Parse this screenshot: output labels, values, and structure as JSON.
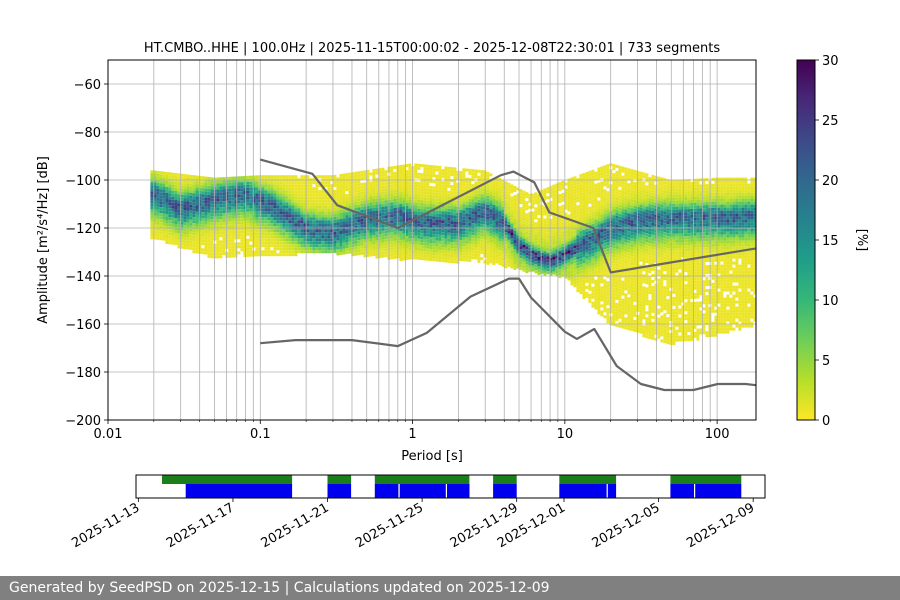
{
  "footer": {
    "generated_label": "Generated by SeedPSD on",
    "generated_date": "2025-12-15",
    "separator": "|",
    "updated_label": "Calculations updated on",
    "updated_date": "2025-12-09"
  },
  "colors": {
    "noise_model": "#666666",
    "grid": "#b0b0b0",
    "coverage_green": "#1a7f1a",
    "coverage_blue": "#0000ee",
    "colormap": [
      "#fde725",
      "#b5de2b",
      "#6ece58",
      "#35b779",
      "#1f9e89",
      "#26828e",
      "#31688e",
      "#3e4989",
      "#482878",
      "#440154"
    ]
  },
  "chart_data": [
    {
      "type": "heatmap",
      "title": "HT.CMBO..HHE | 100.0Hz | 2025-11-15T00:00:02 - 2025-12-08T22:30:01 | 733 segments",
      "xlabel": "Period [s]",
      "ylabel": "Amplitude [m²/s⁴/Hz] [dB]",
      "xscale": "log",
      "xlim": [
        0.01,
        180
      ],
      "ylim": [
        -200,
        -50
      ],
      "xticks": [
        0.01,
        0.1,
        1,
        10,
        100
      ],
      "xtick_labels": [
        "0.01",
        "0.1",
        "1",
        "10",
        "100"
      ],
      "yticks": [
        -200,
        -180,
        -160,
        -140,
        -120,
        -100,
        -80,
        -60
      ],
      "ytick_labels": [
        "−200",
        "−180",
        "−160",
        "−140",
        "−120",
        "−100",
        "−80",
        "−60"
      ],
      "grid": true,
      "colorbar": {
        "label": "[%]",
        "range": [
          0,
          30
        ],
        "ticks": [
          0,
          5,
          10,
          15,
          20,
          25,
          30
        ],
        "tick_labels": [
          "0",
          "5",
          "10",
          "15",
          "20",
          "25",
          "30"
        ]
      },
      "psd_mode_curve": {
        "period": [
          0.02,
          0.03,
          0.05,
          0.08,
          0.12,
          0.2,
          0.3,
          0.5,
          0.8,
          1.2,
          2,
          3,
          4,
          5,
          6,
          7,
          8,
          10,
          13,
          16,
          20,
          30,
          50,
          80,
          120,
          180
        ],
        "db": [
          -105,
          -111,
          -107,
          -105,
          -110,
          -119,
          -121,
          -115,
          -114,
          -117,
          -117,
          -112,
          -117,
          -126,
          -130,
          -132,
          -133,
          -130,
          -126,
          -123,
          -119,
          -116,
          -115,
          -115,
          -115,
          -114
        ]
      },
      "psd_spread": {
        "period": [
          0.02,
          0.05,
          0.1,
          0.3,
          1,
          3,
          6,
          10,
          20,
          50,
          100,
          180
        ],
        "upper_db": [
          -96,
          -99,
          -98,
          -98,
          -93,
          -96,
          -106,
          -100,
          -93,
          -100,
          -99,
          -99
        ],
        "lower_db": [
          -124,
          -132,
          -131,
          -130,
          -133,
          -134,
          -138,
          -140,
          -160,
          -168,
          -164,
          -160
        ]
      },
      "series": [
        {
          "name": "High Noise Model",
          "period": [
            0.1,
            0.22,
            0.32,
            0.8,
            3.8,
            4.6,
            6.3,
            7.9,
            15.4,
            20,
            180
          ],
          "db": [
            -91.5,
            -97.4,
            -110.5,
            -120,
            -98,
            -96.5,
            -101,
            -113.5,
            -120,
            -138.5,
            -128.5
          ]
        },
        {
          "name": "Low Noise Model",
          "period": [
            0.1,
            0.17,
            0.4,
            0.8,
            1.24,
            2.4,
            4.3,
            5,
            6,
            10,
            12,
            15.6,
            21.9,
            31.6,
            45,
            70,
            101,
            154,
            180
          ],
          "db": [
            -168,
            -166.7,
            -166.7,
            -169.2,
            -163.7,
            -148.6,
            -141.1,
            -141.1,
            -149,
            -163.2,
            -166.2,
            -162.1,
            -177.5,
            -185,
            -187.5,
            -187.5,
            -185,
            -185,
            -185.5
          ]
        }
      ]
    },
    {
      "type": "timeline",
      "name": "data coverage",
      "x_tick_labels": [
        "2025-11-13",
        "2025-11-17",
        "2025-11-21",
        "2025-11-25",
        "2025-11-29",
        "2025-12-01",
        "2025-12-05",
        "2025-12-09"
      ],
      "x_tick_days": [
        -2,
        2,
        6,
        10,
        14,
        16,
        20,
        24
      ],
      "start_day": -2.1,
      "end_day": 24.5,
      "reference_date": "2025-11-15",
      "coverage_green_days": [
        [
          -1.0,
          4.5
        ],
        [
          6.0,
          7.0
        ],
        [
          8.0,
          12.0
        ],
        [
          13.0,
          14.0
        ],
        [
          15.8,
          18.2
        ],
        [
          20.5,
          23.5
        ]
      ],
      "coverage_blue_days": [
        [
          0.0,
          4.5
        ],
        [
          6.0,
          7.0
        ],
        [
          8.0,
          9.0
        ],
        [
          9.05,
          11.0
        ],
        [
          11.05,
          12.0
        ],
        [
          13.0,
          14.0
        ],
        [
          15.8,
          17.8
        ],
        [
          17.85,
          18.2
        ],
        [
          20.5,
          21.5
        ],
        [
          21.55,
          23.5
        ]
      ]
    }
  ]
}
